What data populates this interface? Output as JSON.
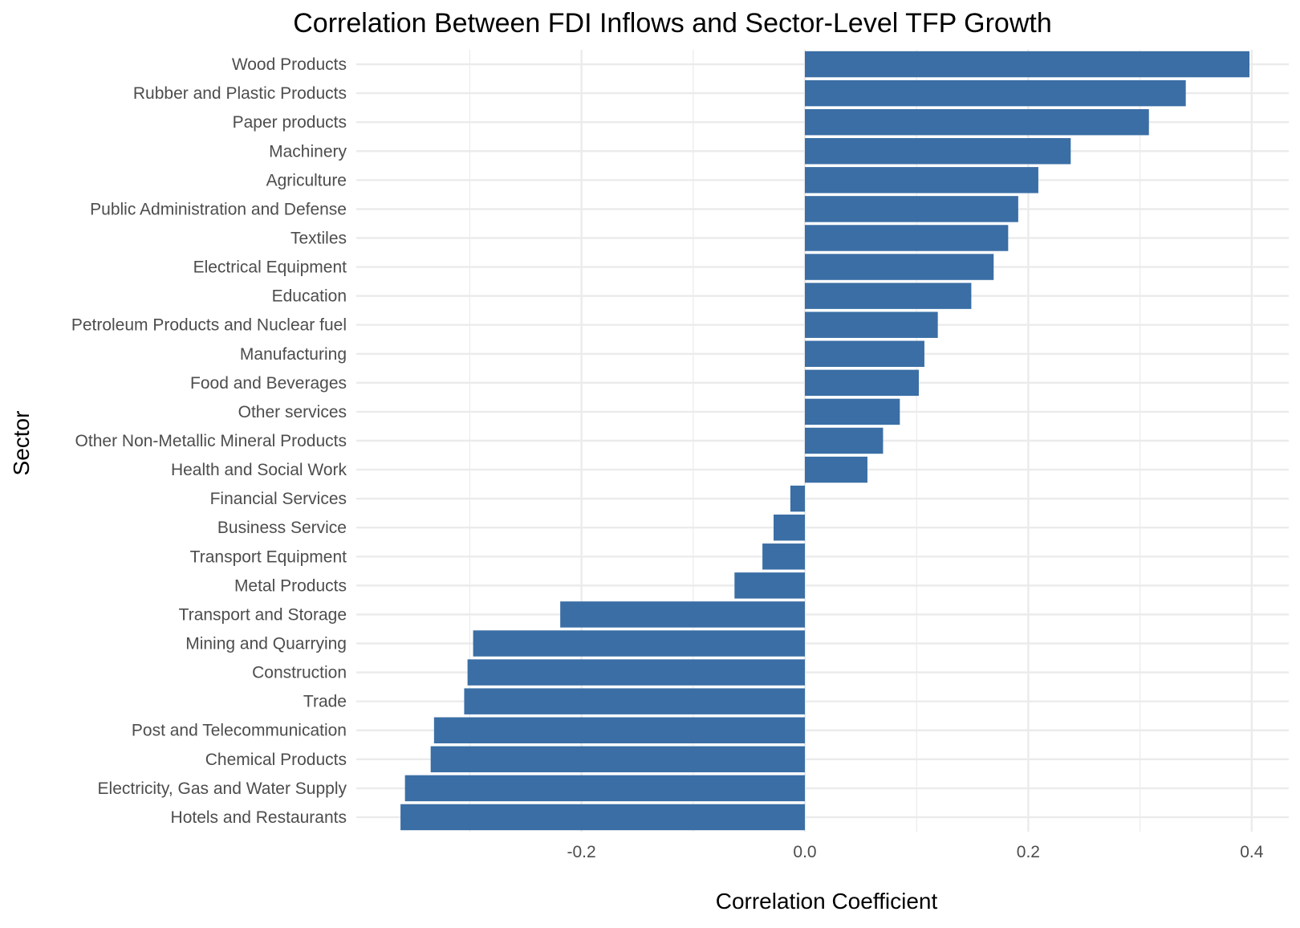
{
  "chart_data": {
    "type": "bar",
    "orientation": "horizontal",
    "title": "Correlation Between FDI Inflows and Sector-Level TFP Growth",
    "xlabel": "Correlation Coefficient",
    "ylabel": "Sector",
    "xlim": [
      -0.38,
      0.42
    ],
    "xticks": [
      -0.2,
      0.0,
      0.2,
      0.4
    ],
    "xtick_labels": [
      "-0.2",
      "0.0",
      "0.2",
      "0.4"
    ],
    "grid": true,
    "bar_color": "#3a6ea5",
    "categories": [
      "Wood Products",
      "Rubber and Plastic Products",
      "Paper products",
      "Machinery",
      "Agriculture",
      "Public Administration and Defense",
      "Textiles",
      "Electrical Equipment",
      "Education",
      "Petroleum Products and Nuclear fuel",
      "Manufacturing",
      "Food and Beverages",
      "Other services",
      "Other Non-Metallic Mineral Products",
      "Health and Social Work",
      "Financial Services",
      "Business Service",
      "Transport Equipment",
      "Metal Products",
      "Transport and Storage",
      "Mining and Quarrying",
      "Construction",
      "Trade",
      "Post and Telecommunication",
      "Chemical Products",
      "Electricity, Gas and Water Supply",
      "Hotels and Restaurants"
    ],
    "values": [
      0.398,
      0.341,
      0.308,
      0.238,
      0.209,
      0.191,
      0.182,
      0.169,
      0.149,
      0.119,
      0.107,
      0.102,
      0.085,
      0.07,
      0.056,
      -0.013,
      -0.028,
      -0.038,
      -0.063,
      -0.219,
      -0.297,
      -0.302,
      -0.305,
      -0.332,
      -0.335,
      -0.358,
      -0.362
    ]
  }
}
